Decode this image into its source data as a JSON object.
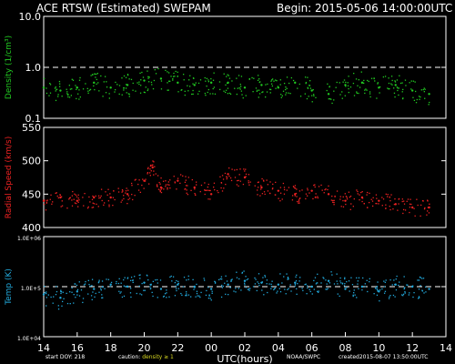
{
  "header": {
    "title": "ACE RTSW (Estimated) SWEPAM",
    "begin": "Begin: 2015-05-06 14:00:00UTC"
  },
  "footer": {
    "start_doy": "start DOY: 218",
    "caution_prefix": "caution:",
    "caution_value": "density ≥ 1",
    "source": "NOAA/SWPC",
    "created": "created2015-08-07 13:50:00UTC"
  },
  "colors": {
    "density": "#22cc22",
    "speed": "#ee2222",
    "temperature": "#22aadd",
    "frame": "#ffffff",
    "background": "#000000",
    "caution_value": "#dddd22"
  },
  "chart_data": [
    {
      "type": "scatter",
      "name": "density",
      "ylabel": "Density (1/cm³)",
      "yscale": "log",
      "ylim": [
        0.1,
        10.0
      ],
      "yticks": [
        "10.0",
        "1.0",
        "0.1"
      ],
      "reference_line": 1.0,
      "x_range_hours": [
        14,
        38
      ],
      "series": [
        {
          "points_x": [
            14,
            15,
            16,
            17,
            18,
            19,
            20,
            21,
            22,
            23,
            24,
            25,
            26,
            27,
            28,
            29,
            30,
            31,
            32,
            33,
            34,
            35,
            36,
            37
          ],
          "values": [
            0.4,
            0.35,
            0.4,
            0.5,
            0.4,
            0.45,
            0.55,
            0.6,
            0.5,
            0.45,
            0.5,
            0.5,
            0.4,
            0.45,
            0.4,
            0.5,
            0.35,
            0.3,
            0.45,
            0.5,
            0.4,
            0.45,
            0.35,
            0.3
          ]
        }
      ]
    },
    {
      "type": "scatter",
      "name": "speed",
      "ylabel": "Radial Speed (km/s)",
      "ylim": [
        400,
        550
      ],
      "yticks": [
        "550",
        "500",
        "450",
        "400"
      ],
      "x_range_hours": [
        14,
        38
      ],
      "series": [
        {
          "points_x": [
            14,
            15,
            16,
            17,
            18,
            19,
            20,
            20.5,
            21,
            22,
            23,
            24,
            25,
            26,
            27,
            28,
            29,
            30,
            31,
            32,
            33,
            34,
            35,
            36,
            37
          ],
          "values": [
            440,
            445,
            440,
            445,
            445,
            450,
            470,
            490,
            460,
            470,
            460,
            450,
            480,
            475,
            460,
            455,
            450,
            455,
            450,
            440,
            445,
            440,
            435,
            430,
            430
          ]
        }
      ]
    },
    {
      "type": "scatter",
      "name": "temperature",
      "ylabel": "Temp (K)",
      "yscale": "log",
      "ylim": [
        10000.0,
        1000000.0
      ],
      "yticks": [
        "1.0E+06",
        "1.0E+5",
        "1.0E+04"
      ],
      "reference_line": 100000,
      "x_range_hours": [
        14,
        38
      ],
      "xlabel": "UTC(hours)",
      "xticks": [
        "14",
        "16",
        "18",
        "20",
        "22",
        "00",
        "02",
        "04",
        "06",
        "08",
        "10",
        "12",
        "14"
      ],
      "series": [
        {
          "points_x": [
            14,
            15,
            16,
            17,
            18,
            19,
            20,
            21,
            22,
            23,
            24,
            25,
            26,
            27,
            28,
            29,
            30,
            31,
            32,
            33,
            34,
            35,
            36,
            37
          ],
          "values": [
            70000,
            60000,
            80000,
            90000,
            110000,
            100000,
            120000,
            90000,
            110000,
            100000,
            90000,
            110000,
            130000,
            120000,
            110000,
            120000,
            100000,
            130000,
            90000,
            100000,
            80000,
            110000,
            100000,
            90000
          ]
        }
      ]
    }
  ]
}
